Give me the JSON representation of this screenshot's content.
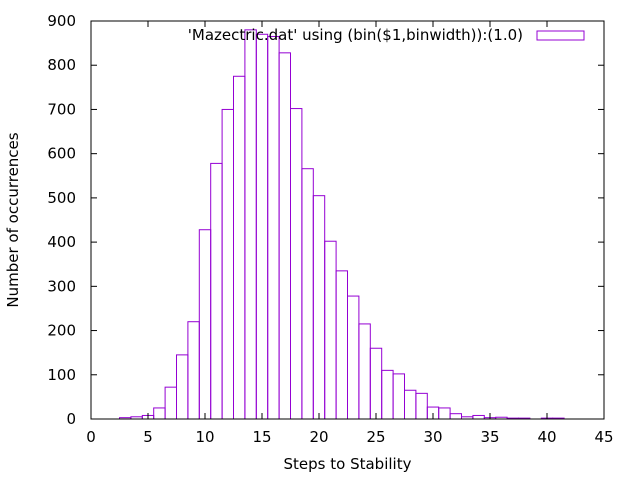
{
  "chart_data": {
    "type": "bar",
    "subtype": "histogram",
    "xlabel": "Steps to Stability",
    "ylabel": "Number of occurrences",
    "xlim": [
      0,
      45
    ],
    "ylim": [
      0,
      900
    ],
    "xticks": [
      0,
      5,
      10,
      15,
      20,
      25,
      30,
      35,
      40,
      45
    ],
    "yticks": [
      0,
      100,
      200,
      300,
      400,
      500,
      600,
      700,
      800,
      900
    ],
    "grid": false,
    "legend_position": "top-right",
    "bar_color": "#9400d3",
    "bin_width": 1,
    "series": [
      {
        "name": "'Mazectric.dat' using (bin($1,binwidth)):(1.0)",
        "bins": [
          3,
          4,
          5,
          6,
          7,
          8,
          9,
          10,
          11,
          12,
          13,
          14,
          15,
          16,
          17,
          18,
          19,
          20,
          21,
          22,
          23,
          24,
          25,
          26,
          27,
          28,
          29,
          30,
          31,
          32,
          33,
          34,
          35,
          36,
          37,
          38,
          40,
          41
        ],
        "values": [
          3,
          5,
          8,
          25,
          72,
          145,
          220,
          428,
          578,
          700,
          775,
          880,
          870,
          865,
          828,
          702,
          566,
          505,
          402,
          335,
          278,
          215,
          160,
          110,
          102,
          65,
          58,
          27,
          25,
          12,
          5,
          8,
          3,
          4,
          2,
          2,
          2,
          2
        ]
      }
    ]
  }
}
